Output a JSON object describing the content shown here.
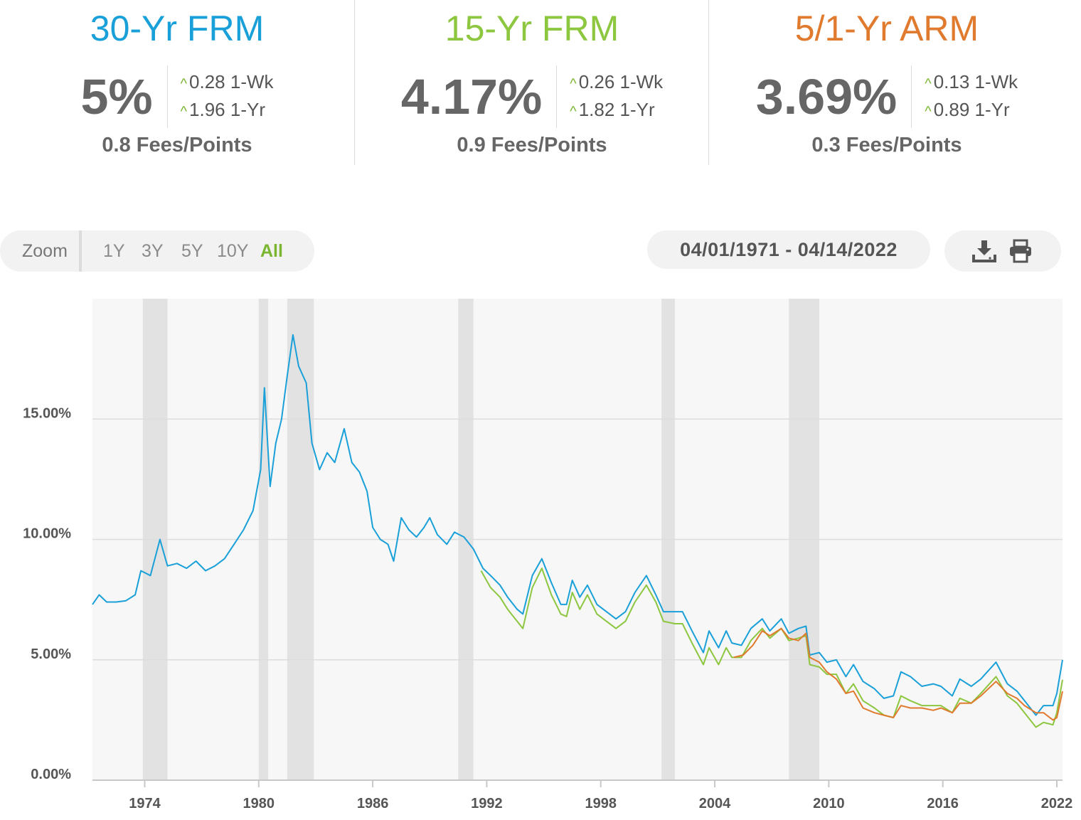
{
  "stats": [
    {
      "id": "30yr",
      "title": "30-Yr FRM",
      "color": "#1aa0d8",
      "rate": "5%",
      "week": "0.28 1-Wk",
      "year": "1.96 1-Yr",
      "fees": "0.8 Fees/Points"
    },
    {
      "id": "15yr",
      "title": "15-Yr FRM",
      "color": "#8dc63f",
      "rate": "4.17%",
      "week": "0.26 1-Wk",
      "year": "1.82 1-Yr",
      "fees": "0.9 Fees/Points"
    },
    {
      "id": "arm",
      "title": "5/1-Yr ARM",
      "color": "#e07a2e",
      "rate": "3.69%",
      "week": "0.13 1-Wk",
      "year": "0.89 1-Yr",
      "fees": "0.3 Fees/Points"
    }
  ],
  "toolbar": {
    "zoom_label": "Zoom",
    "zoom_options": [
      "1Y",
      "3Y",
      "5Y",
      "10Y",
      "All"
    ],
    "active_zoom": "All",
    "date_range": "04/01/1971 - 04/14/2022",
    "icons": [
      "download-icon",
      "print-icon"
    ]
  },
  "chart_data": {
    "type": "line",
    "x_range": [
      1971.25,
      2022.3
    ],
    "ylim": [
      0,
      20
    ],
    "y_ticks": [
      {
        "value": 0,
        "label": "0.00%"
      },
      {
        "value": 5,
        "label": "5.00%"
      },
      {
        "value": 10,
        "label": "10.00%"
      },
      {
        "value": 15,
        "label": "15.00%"
      }
    ],
    "x_ticks": [
      {
        "value": 1974,
        "label": "1974"
      },
      {
        "value": 1980,
        "label": "1980"
      },
      {
        "value": 1986,
        "label": "1986"
      },
      {
        "value": 1992,
        "label": "1992"
      },
      {
        "value": 1998,
        "label": "1998"
      },
      {
        "value": 2004,
        "label": "2004"
      },
      {
        "value": 2010,
        "label": "2010"
      },
      {
        "value": 2016,
        "label": "2016"
      },
      {
        "value": 2022,
        "label": "2022"
      }
    ],
    "grid": true,
    "recessions": [
      [
        1973.9,
        1975.2
      ],
      [
        1980.0,
        1980.5
      ],
      [
        1981.5,
        1982.9
      ],
      [
        1990.5,
        1991.3
      ],
      [
        2001.2,
        2001.9
      ],
      [
        2007.9,
        2009.5
      ]
    ],
    "series": [
      {
        "name": "30-Yr FRM",
        "color": "#1aa0d8",
        "points": [
          [
            1971.25,
            7.3
          ],
          [
            1971.6,
            7.7
          ],
          [
            1972.0,
            7.4
          ],
          [
            1972.5,
            7.4
          ],
          [
            1973.0,
            7.45
          ],
          [
            1973.5,
            7.7
          ],
          [
            1973.8,
            8.7
          ],
          [
            1974.3,
            8.5
          ],
          [
            1974.8,
            10.0
          ],
          [
            1975.2,
            8.9
          ],
          [
            1975.7,
            9.0
          ],
          [
            1976.2,
            8.8
          ],
          [
            1976.7,
            9.1
          ],
          [
            1977.2,
            8.7
          ],
          [
            1977.7,
            8.9
          ],
          [
            1978.2,
            9.2
          ],
          [
            1978.7,
            9.8
          ],
          [
            1979.2,
            10.4
          ],
          [
            1979.7,
            11.2
          ],
          [
            1980.1,
            12.9
          ],
          [
            1980.3,
            16.3
          ],
          [
            1980.6,
            12.2
          ],
          [
            1980.9,
            14.0
          ],
          [
            1981.2,
            15.0
          ],
          [
            1981.5,
            16.8
          ],
          [
            1981.8,
            18.5
          ],
          [
            1982.1,
            17.2
          ],
          [
            1982.5,
            16.5
          ],
          [
            1982.8,
            14.0
          ],
          [
            1983.2,
            12.9
          ],
          [
            1983.6,
            13.6
          ],
          [
            1984.0,
            13.2
          ],
          [
            1984.5,
            14.6
          ],
          [
            1984.9,
            13.2
          ],
          [
            1985.3,
            12.8
          ],
          [
            1985.7,
            12.0
          ],
          [
            1986.0,
            10.5
          ],
          [
            1986.4,
            10.0
          ],
          [
            1986.8,
            9.8
          ],
          [
            1987.1,
            9.1
          ],
          [
            1987.5,
            10.9
          ],
          [
            1987.9,
            10.4
          ],
          [
            1988.3,
            10.1
          ],
          [
            1988.7,
            10.5
          ],
          [
            1989.0,
            10.9
          ],
          [
            1989.4,
            10.2
          ],
          [
            1989.9,
            9.8
          ],
          [
            1990.3,
            10.3
          ],
          [
            1990.8,
            10.1
          ],
          [
            1991.3,
            9.6
          ],
          [
            1991.8,
            8.8
          ],
          [
            1992.2,
            8.5
          ],
          [
            1992.7,
            8.1
          ],
          [
            1993.1,
            7.6
          ],
          [
            1993.6,
            7.1
          ],
          [
            1993.9,
            6.9
          ],
          [
            1994.4,
            8.5
          ],
          [
            1994.9,
            9.2
          ],
          [
            1995.4,
            8.2
          ],
          [
            1995.9,
            7.3
          ],
          [
            1996.2,
            7.3
          ],
          [
            1996.5,
            8.3
          ],
          [
            1996.9,
            7.6
          ],
          [
            1997.3,
            8.1
          ],
          [
            1997.8,
            7.3
          ],
          [
            1998.3,
            7.0
          ],
          [
            1998.8,
            6.7
          ],
          [
            1999.3,
            7.0
          ],
          [
            1999.8,
            7.8
          ],
          [
            2000.4,
            8.5
          ],
          [
            2000.9,
            7.7
          ],
          [
            2001.3,
            7.0
          ],
          [
            2001.9,
            7.0
          ],
          [
            2002.3,
            7.0
          ],
          [
            2002.8,
            6.2
          ],
          [
            2003.4,
            5.3
          ],
          [
            2003.7,
            6.2
          ],
          [
            2004.2,
            5.5
          ],
          [
            2004.6,
            6.2
          ],
          [
            2004.9,
            5.7
          ],
          [
            2005.4,
            5.6
          ],
          [
            2005.9,
            6.3
          ],
          [
            2006.5,
            6.7
          ],
          [
            2006.9,
            6.2
          ],
          [
            2007.5,
            6.7
          ],
          [
            2007.9,
            6.1
          ],
          [
            2008.4,
            6.3
          ],
          [
            2008.8,
            6.4
          ],
          [
            2009.0,
            5.2
          ],
          [
            2009.5,
            5.3
          ],
          [
            2009.9,
            4.9
          ],
          [
            2010.4,
            5.0
          ],
          [
            2010.9,
            4.3
          ],
          [
            2011.3,
            4.8
          ],
          [
            2011.8,
            4.1
          ],
          [
            2012.4,
            3.8
          ],
          [
            2012.9,
            3.4
          ],
          [
            2013.4,
            3.5
          ],
          [
            2013.8,
            4.5
          ],
          [
            2014.3,
            4.3
          ],
          [
            2014.9,
            3.9
          ],
          [
            2015.5,
            4.0
          ],
          [
            2015.9,
            3.9
          ],
          [
            2016.5,
            3.5
          ],
          [
            2016.9,
            4.2
          ],
          [
            2017.5,
            3.9
          ],
          [
            2018.0,
            4.2
          ],
          [
            2018.8,
            4.9
          ],
          [
            2019.4,
            4.0
          ],
          [
            2019.9,
            3.7
          ],
          [
            2020.3,
            3.3
          ],
          [
            2020.9,
            2.7
          ],
          [
            2021.3,
            3.1
          ],
          [
            2021.8,
            3.1
          ],
          [
            2022.0,
            3.6
          ],
          [
            2022.3,
            5.0
          ]
        ]
      },
      {
        "name": "15-Yr FRM",
        "color": "#8dc63f",
        "points": [
          [
            1991.7,
            8.7
          ],
          [
            1992.2,
            8.0
          ],
          [
            1992.7,
            7.6
          ],
          [
            1993.1,
            7.1
          ],
          [
            1993.6,
            6.6
          ],
          [
            1993.9,
            6.3
          ],
          [
            1994.4,
            8.0
          ],
          [
            1994.9,
            8.8
          ],
          [
            1995.4,
            7.7
          ],
          [
            1995.9,
            6.9
          ],
          [
            1996.2,
            6.8
          ],
          [
            1996.5,
            7.8
          ],
          [
            1996.9,
            7.1
          ],
          [
            1997.3,
            7.7
          ],
          [
            1997.8,
            6.9
          ],
          [
            1998.3,
            6.6
          ],
          [
            1998.8,
            6.3
          ],
          [
            1999.3,
            6.6
          ],
          [
            1999.8,
            7.4
          ],
          [
            2000.4,
            8.1
          ],
          [
            2000.9,
            7.4
          ],
          [
            2001.3,
            6.6
          ],
          [
            2001.9,
            6.5
          ],
          [
            2002.3,
            6.5
          ],
          [
            2002.8,
            5.7
          ],
          [
            2003.4,
            4.8
          ],
          [
            2003.7,
            5.5
          ],
          [
            2004.2,
            4.8
          ],
          [
            2004.6,
            5.5
          ],
          [
            2004.9,
            5.1
          ],
          [
            2005.4,
            5.1
          ],
          [
            2005.9,
            5.8
          ],
          [
            2006.5,
            6.3
          ],
          [
            2006.9,
            5.9
          ],
          [
            2007.5,
            6.3
          ],
          [
            2007.9,
            5.8
          ],
          [
            2008.4,
            5.9
          ],
          [
            2008.8,
            6.0
          ],
          [
            2009.0,
            4.8
          ],
          [
            2009.5,
            4.7
          ],
          [
            2009.9,
            4.4
          ],
          [
            2010.4,
            4.4
          ],
          [
            2010.9,
            3.6
          ],
          [
            2011.3,
            4.0
          ],
          [
            2011.8,
            3.3
          ],
          [
            2012.4,
            3.0
          ],
          [
            2012.9,
            2.7
          ],
          [
            2013.4,
            2.6
          ],
          [
            2013.8,
            3.5
          ],
          [
            2014.3,
            3.3
          ],
          [
            2014.9,
            3.1
          ],
          [
            2015.5,
            3.1
          ],
          [
            2015.9,
            3.1
          ],
          [
            2016.5,
            2.8
          ],
          [
            2016.9,
            3.4
          ],
          [
            2017.5,
            3.2
          ],
          [
            2018.0,
            3.6
          ],
          [
            2018.8,
            4.3
          ],
          [
            2019.4,
            3.5
          ],
          [
            2019.9,
            3.2
          ],
          [
            2020.3,
            2.8
          ],
          [
            2020.9,
            2.2
          ],
          [
            2021.3,
            2.4
          ],
          [
            2021.8,
            2.3
          ],
          [
            2022.0,
            2.8
          ],
          [
            2022.3,
            4.17
          ]
        ]
      },
      {
        "name": "5/1-Yr ARM",
        "color": "#e07a2e",
        "points": [
          [
            2005.0,
            5.1
          ],
          [
            2005.5,
            5.2
          ],
          [
            2006.0,
            5.6
          ],
          [
            2006.5,
            6.2
          ],
          [
            2006.9,
            6.0
          ],
          [
            2007.5,
            6.3
          ],
          [
            2007.9,
            5.9
          ],
          [
            2008.4,
            5.8
          ],
          [
            2008.8,
            6.1
          ],
          [
            2009.0,
            5.1
          ],
          [
            2009.5,
            4.9
          ],
          [
            2009.9,
            4.5
          ],
          [
            2010.4,
            4.2
          ],
          [
            2010.9,
            3.6
          ],
          [
            2011.3,
            3.7
          ],
          [
            2011.8,
            3.0
          ],
          [
            2012.4,
            2.8
          ],
          [
            2012.9,
            2.7
          ],
          [
            2013.4,
            2.6
          ],
          [
            2013.8,
            3.1
          ],
          [
            2014.3,
            3.0
          ],
          [
            2014.9,
            3.0
          ],
          [
            2015.5,
            2.9
          ],
          [
            2015.9,
            3.0
          ],
          [
            2016.5,
            2.8
          ],
          [
            2016.9,
            3.2
          ],
          [
            2017.5,
            3.2
          ],
          [
            2018.0,
            3.5
          ],
          [
            2018.8,
            4.1
          ],
          [
            2019.4,
            3.6
          ],
          [
            2019.9,
            3.4
          ],
          [
            2020.3,
            3.1
          ],
          [
            2020.9,
            2.8
          ],
          [
            2021.3,
            2.8
          ],
          [
            2021.8,
            2.5
          ],
          [
            2022.0,
            2.6
          ],
          [
            2022.3,
            3.69
          ]
        ]
      }
    ]
  }
}
